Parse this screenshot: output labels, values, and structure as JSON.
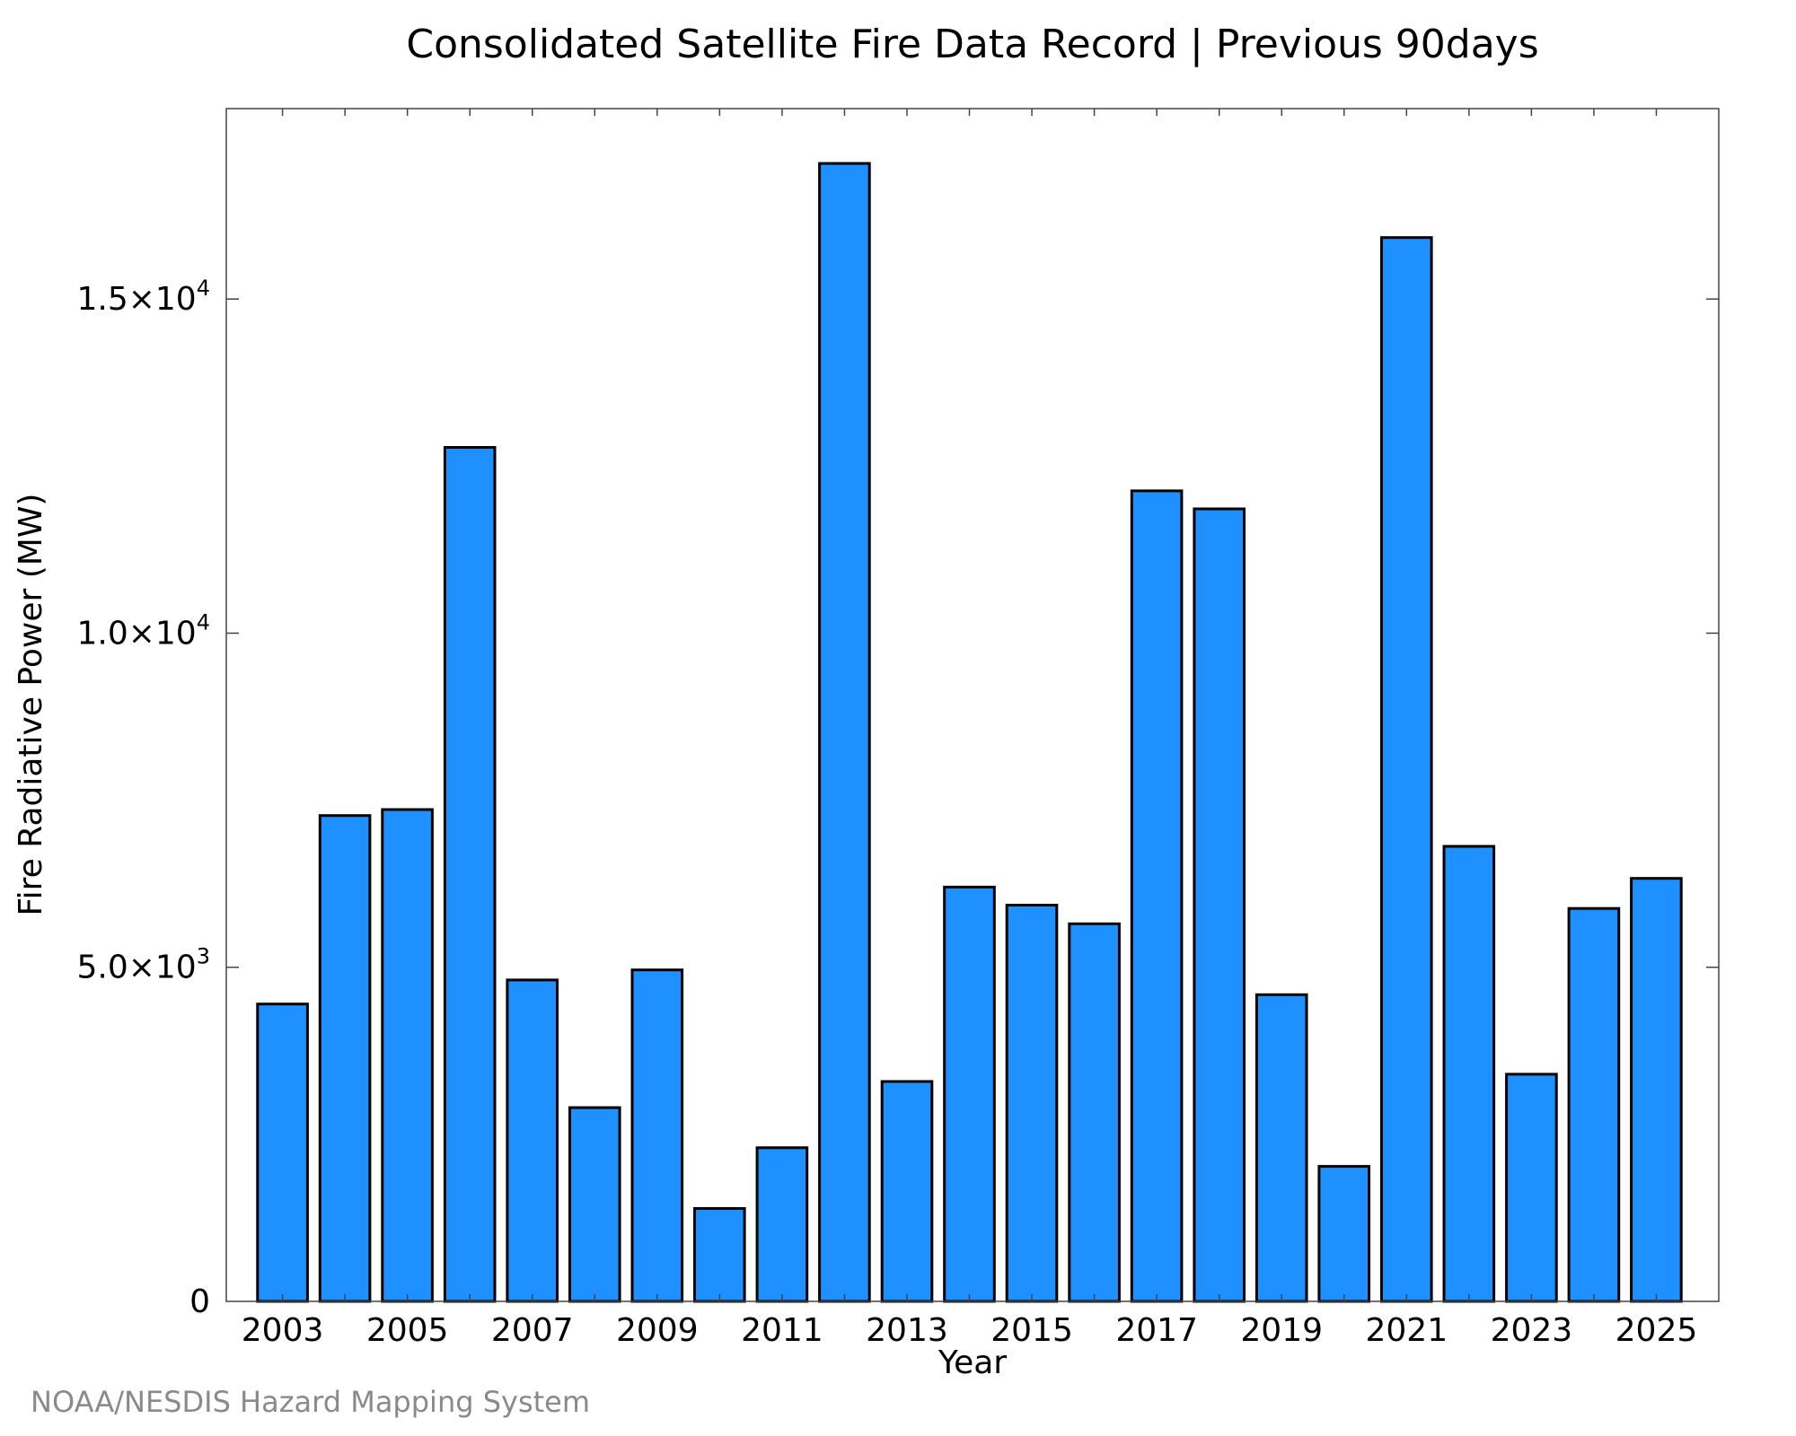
{
  "chart_data": {
    "type": "bar",
    "title": "Consolidated Satellite Fire Data Record | Previous 90days",
    "xlabel": "Year",
    "ylabel": "Fire Radiative Power (MW)",
    "categories": [
      "2003",
      "2004",
      "2005",
      "2006",
      "2007",
      "2008",
      "2009",
      "2010",
      "2011",
      "2012",
      "2013",
      "2014",
      "2015",
      "2016",
      "2017",
      "2018",
      "2019",
      "2020",
      "2021",
      "2022",
      "2023",
      "2024",
      "2025"
    ],
    "values": [
      4450,
      7270,
      7360,
      12780,
      4810,
      2900,
      4960,
      1390,
      2300,
      17030,
      3290,
      6200,
      5930,
      5650,
      12130,
      11860,
      4590,
      2020,
      15920,
      6810,
      3400,
      5880,
      6330
    ],
    "ylim": [
      0,
      17850
    ],
    "xlim": [
      2002.1,
      2026.0
    ],
    "xticks": [
      2003,
      2005,
      2007,
      2009,
      2011,
      2013,
      2015,
      2017,
      2019,
      2021,
      2023,
      2025
    ],
    "yticks": [
      {
        "value": 0,
        "mantissa": "0",
        "exponent": ""
      },
      {
        "value": 5000,
        "mantissa": "5.0×10",
        "exponent": "3"
      },
      {
        "value": 10000,
        "mantissa": "1.0×10",
        "exponent": "4"
      },
      {
        "value": 15000,
        "mantissa": "1.5×10",
        "exponent": "4"
      }
    ],
    "grid": false,
    "bar_color": "#1e90ff",
    "bar_edge_color": "#000000"
  },
  "credit": "NOAA/NESDIS Hazard Mapping System"
}
